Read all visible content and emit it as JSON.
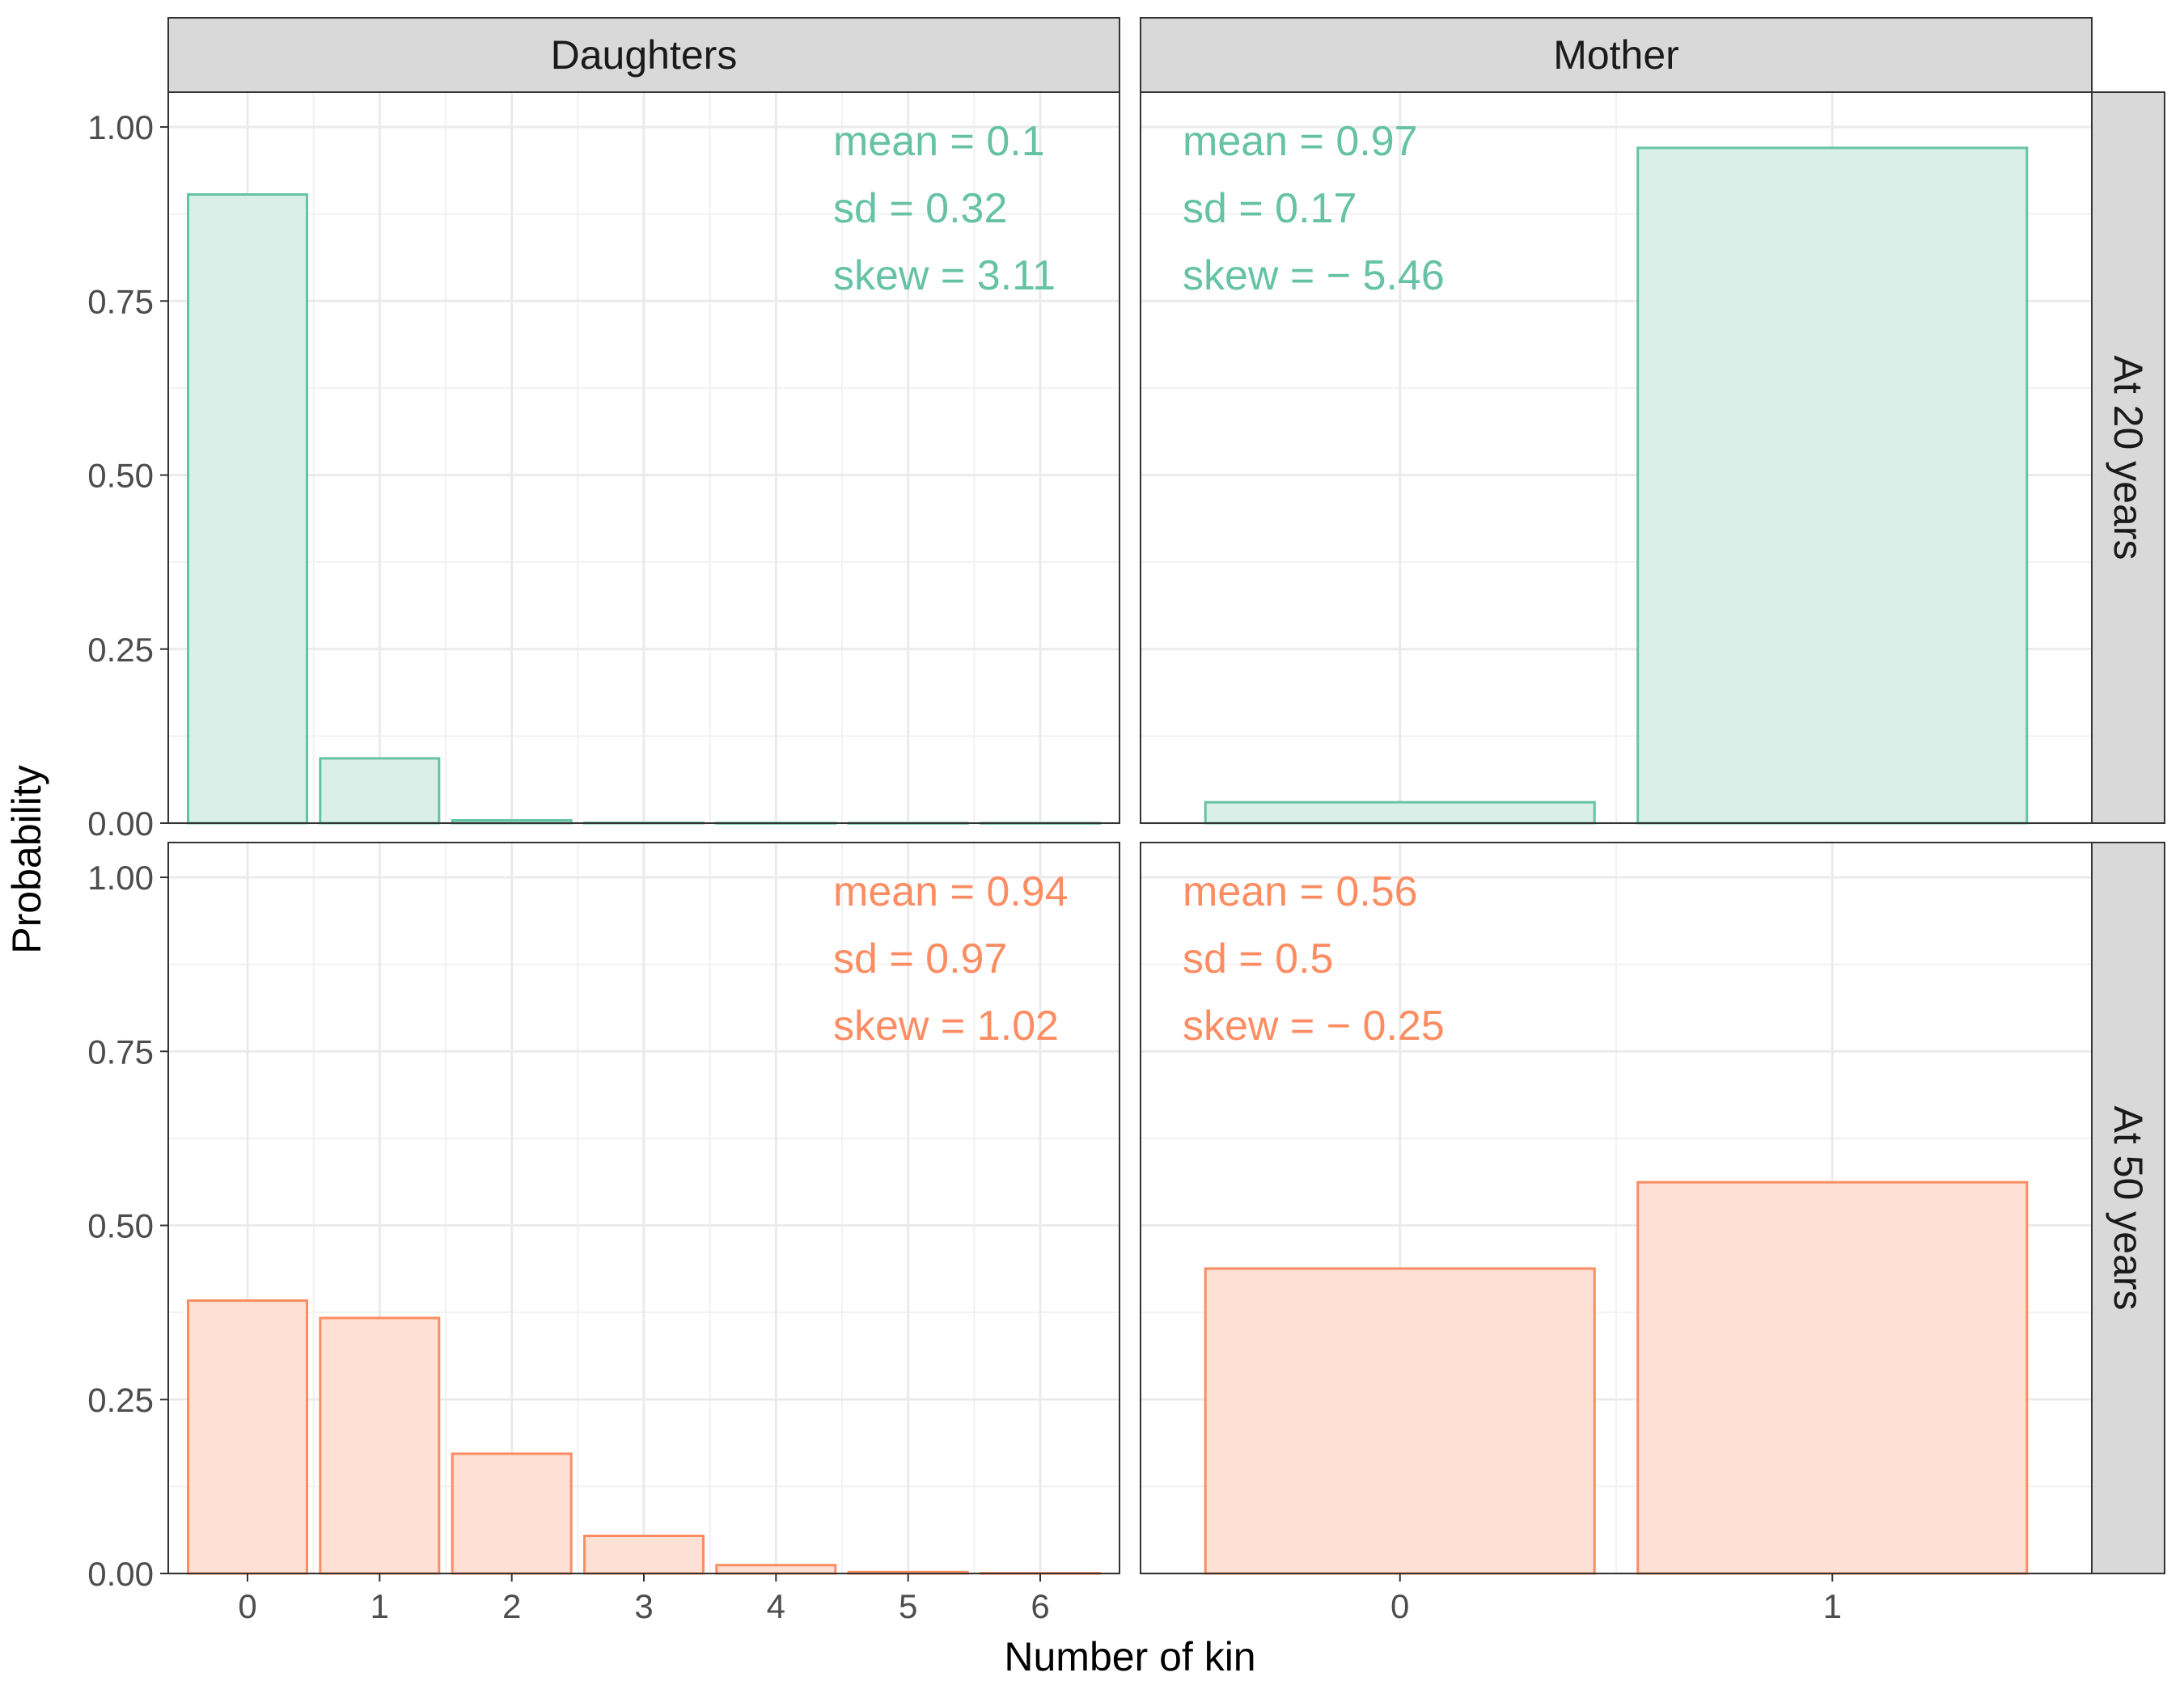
{
  "chart_data": {
    "type": "bar",
    "xlabel": "Number of kin",
    "ylabel": "Probability",
    "ylim": [
      0,
      1.05
    ],
    "y_ticks": [
      0,
      0.25,
      0.5,
      0.75,
      1
    ],
    "y_tick_labels": [
      "0.00",
      "0.25",
      "0.50",
      "0.75",
      "1.00"
    ],
    "grid": true,
    "legend": "none",
    "columns": [
      {
        "label": "Daughters",
        "categories": [
          "0",
          "1",
          "2",
          "3",
          "4",
          "5",
          "6"
        ],
        "xlim": [
          -0.6,
          6.6
        ]
      },
      {
        "label": "Mother",
        "categories": [
          "0",
          "1"
        ],
        "xlim": [
          -0.6,
          1.6
        ]
      }
    ],
    "rows": [
      {
        "label": "At 20 years",
        "color": "#66c2a5",
        "fill": "#d9efe8"
      },
      {
        "label": "At 50 years",
        "color": "#fc8d62",
        "fill": "#fee0d5"
      }
    ],
    "panels": [
      {
        "column": 0,
        "row": 0,
        "values": [
          0.903,
          0.093,
          0.004,
          0.0005,
          0.0002,
          0.0001,
          0.0001
        ],
        "stats": [
          "mean = 0.1",
          "sd = 0.32",
          "skew = 3.11"
        ],
        "stats_position": "right"
      },
      {
        "column": 1,
        "row": 0,
        "values": [
          0.03,
          0.97
        ],
        "stats": [
          "mean = 0.97",
          "sd = 0.17",
          "skew = − 5.46"
        ],
        "stats_position": "left"
      },
      {
        "column": 0,
        "row": 1,
        "values": [
          0.392,
          0.367,
          0.172,
          0.054,
          0.012,
          0.002,
          0.0005
        ],
        "stats": [
          "mean = 0.94",
          "sd = 0.97",
          "skew = 1.02"
        ],
        "stats_position": "right"
      },
      {
        "column": 1,
        "row": 1,
        "values": [
          0.438,
          0.562
        ],
        "stats": [
          "mean = 0.56",
          "sd = 0.5",
          "skew = − 0.25"
        ],
        "stats_position": "left"
      }
    ]
  }
}
